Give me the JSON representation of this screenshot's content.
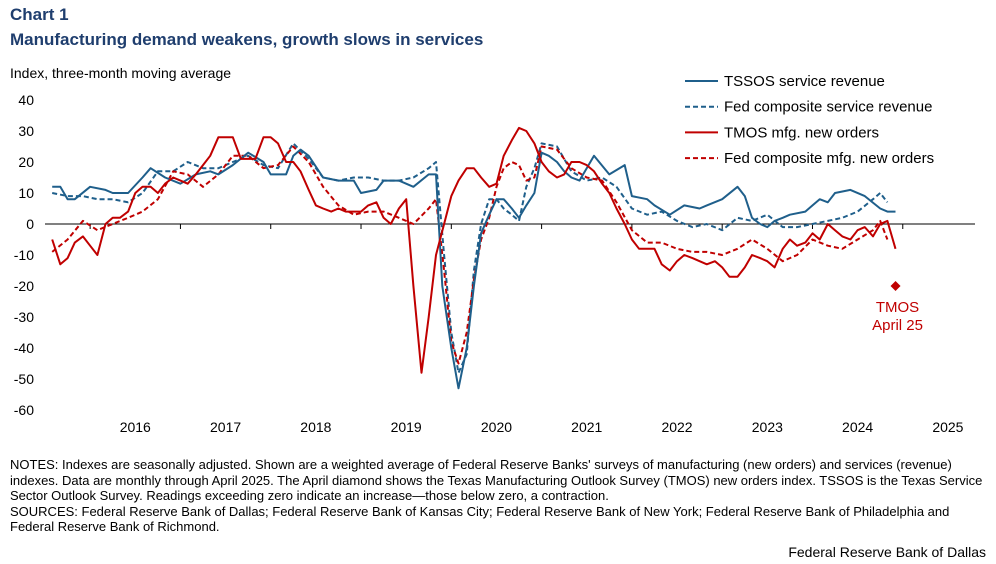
{
  "header": {
    "label": "Chart 1",
    "title": "Manufacturing demand weakens, growth slows in services"
  },
  "chart_data": {
    "type": "line",
    "ylabel": "Index, three-month moving average",
    "ylim": [
      -60,
      40
    ],
    "yticks": [
      40,
      30,
      20,
      10,
      0,
      -10,
      -20,
      -30,
      -40,
      -50,
      -60
    ],
    "xlim": [
      2015.5,
      2025.8
    ],
    "xticks": [
      "2016",
      "2017",
      "2018",
      "2019",
      "2020",
      "2021",
      "2022",
      "2023",
      "2024",
      "2025"
    ],
    "legend_position": "top-right",
    "series": [
      {
        "name": "TSSOS service revenue",
        "color": "#1f5f8b",
        "dash": "solid",
        "x": [
          2015.58,
          2015.67,
          2015.75,
          2015.83,
          2016.0,
          2016.17,
          2016.25,
          2016.42,
          2016.58,
          2016.67,
          2016.83,
          2017.0,
          2017.17,
          2017.33,
          2017.42,
          2017.58,
          2017.75,
          2017.92,
          2018.0,
          2018.17,
          2018.25,
          2018.33,
          2018.42,
          2018.58,
          2018.75,
          2018.92,
          2019.0,
          2019.17,
          2019.25,
          2019.42,
          2019.58,
          2019.75,
          2019.83,
          2019.9,
          2020.0,
          2020.08,
          2020.17,
          2020.25,
          2020.33,
          2020.42,
          2020.5,
          2020.58,
          2020.67,
          2020.75,
          2020.83,
          2020.92,
          2021.0,
          2021.08,
          2021.17,
          2021.25,
          2021.33,
          2021.42,
          2021.58,
          2021.75,
          2021.92,
          2022.0,
          2022.17,
          2022.25,
          2022.42,
          2022.58,
          2022.75,
          2022.83,
          2023.0,
          2023.17,
          2023.25,
          2023.33,
          2023.42,
          2023.5,
          2023.58,
          2023.67,
          2023.75,
          2023.92,
          2024.0,
          2024.08,
          2024.17,
          2024.25,
          2024.42,
          2024.58,
          2024.75,
          2024.83,
          2024.92
        ],
        "y": [
          12,
          12,
          8,
          8,
          12,
          11,
          10,
          10,
          15,
          18,
          15,
          13,
          16,
          17,
          16,
          19,
          23,
          20,
          16,
          16,
          22,
          24,
          22,
          15,
          14,
          14,
          10,
          11,
          14,
          14,
          12,
          16,
          16,
          -20,
          -40,
          -53,
          -40,
          -20,
          -3,
          3,
          8,
          8,
          5,
          2,
          6,
          10,
          23,
          22,
          20,
          17,
          15,
          14,
          22,
          16,
          19,
          9,
          8,
          6,
          3,
          6,
          5,
          6,
          8,
          12,
          9,
          2,
          0,
          -1,
          1,
          2,
          3,
          4,
          6,
          8,
          7,
          10,
          11,
          9,
          5,
          4,
          4
        ]
      },
      {
        "name": "Fed composite service revenue",
        "color": "#1f5f8b",
        "dash": "dashed",
        "x": [
          2015.58,
          2015.75,
          2015.92,
          2016.08,
          2016.25,
          2016.42,
          2016.58,
          2016.75,
          2016.92,
          2017.08,
          2017.25,
          2017.42,
          2017.58,
          2017.75,
          2017.92,
          2018.08,
          2018.25,
          2018.42,
          2018.58,
          2018.75,
          2018.92,
          2019.08,
          2019.25,
          2019.42,
          2019.58,
          2019.75,
          2019.83,
          2019.92,
          2020.0,
          2020.08,
          2020.17,
          2020.25,
          2020.33,
          2020.42,
          2020.5,
          2020.58,
          2020.67,
          2020.75,
          2020.83,
          2020.92,
          2021.0,
          2021.17,
          2021.33,
          2021.5,
          2021.67,
          2021.83,
          2022.0,
          2022.17,
          2022.33,
          2022.5,
          2022.67,
          2022.83,
          2023.0,
          2023.17,
          2023.33,
          2023.5,
          2023.67,
          2023.83,
          2024.0,
          2024.17,
          2024.33,
          2024.5,
          2024.67,
          2024.75,
          2024.83
        ],
        "y": [
          10,
          9,
          9,
          8,
          8,
          7,
          10,
          17,
          17,
          20,
          18,
          18,
          20,
          22,
          19,
          18,
          26,
          21,
          15,
          14,
          15,
          15,
          14,
          14,
          15,
          18,
          20,
          -10,
          -35,
          -48,
          -42,
          -15,
          0,
          8,
          8,
          5,
          3,
          1,
          12,
          18,
          26,
          25,
          17,
          14,
          15,
          12,
          5,
          3,
          4,
          1,
          -1,
          0,
          -2,
          2,
          1,
          3,
          -1,
          -1,
          0,
          1,
          2,
          4,
          8,
          10,
          7
        ]
      },
      {
        "name": "TMOS mfg. new orders",
        "color": "#c00000",
        "dash": "solid",
        "x": [
          2015.58,
          2015.67,
          2015.75,
          2015.83,
          2015.92,
          2016.0,
          2016.08,
          2016.17,
          2016.25,
          2016.33,
          2016.42,
          2016.5,
          2016.58,
          2016.67,
          2016.75,
          2016.83,
          2016.92,
          2017.0,
          2017.08,
          2017.17,
          2017.25,
          2017.33,
          2017.42,
          2017.5,
          2017.58,
          2017.67,
          2017.75,
          2017.83,
          2017.92,
          2018.0,
          2018.08,
          2018.17,
          2018.25,
          2018.33,
          2018.42,
          2018.5,
          2018.58,
          2018.67,
          2018.75,
          2018.83,
          2018.92,
          2019.0,
          2019.08,
          2019.17,
          2019.25,
          2019.33,
          2019.42,
          2019.5,
          2019.58,
          2019.67,
          2019.75,
          2019.83,
          2019.92,
          2020.0,
          2020.08,
          2020.17,
          2020.25,
          2020.33,
          2020.42,
          2020.5,
          2020.58,
          2020.67,
          2020.75,
          2020.83,
          2020.92,
          2021.0,
          2021.08,
          2021.17,
          2021.25,
          2021.33,
          2021.42,
          2021.5,
          2021.58,
          2021.67,
          2021.75,
          2021.83,
          2021.92,
          2022.0,
          2022.08,
          2022.17,
          2022.25,
          2022.33,
          2022.42,
          2022.5,
          2022.58,
          2022.67,
          2022.75,
          2022.83,
          2022.92,
          2023.0,
          2023.08,
          2023.17,
          2023.25,
          2023.33,
          2023.42,
          2023.5,
          2023.58,
          2023.67,
          2023.75,
          2023.83,
          2023.92,
          2024.0,
          2024.08,
          2024.17,
          2024.25,
          2024.33,
          2024.42,
          2024.5,
          2024.58,
          2024.67,
          2024.75,
          2024.83,
          2024.92
        ],
        "y": [
          -5,
          -13,
          -11,
          -6,
          -4,
          -7,
          -10,
          0,
          2,
          2,
          4,
          10,
          12,
          12,
          10,
          13,
          15,
          14,
          13,
          16,
          19,
          22,
          28,
          28,
          28,
          21,
          21,
          21,
          28,
          28,
          26,
          20,
          20,
          17,
          11,
          6,
          5,
          4,
          5,
          4,
          4,
          4,
          6,
          7,
          2,
          0,
          5,
          8,
          -20,
          -48,
          -30,
          -10,
          0,
          9,
          14,
          18,
          18,
          15,
          12,
          13,
          22,
          27,
          31,
          30,
          26,
          20,
          17,
          15,
          16,
          20,
          20,
          19,
          17,
          13,
          10,
          5,
          0,
          -5,
          -8,
          -8,
          -8,
          -13,
          -15,
          -12,
          -10,
          -11,
          -12,
          -13,
          -12,
          -14,
          -17,
          -17,
          -14,
          -10,
          -11,
          -12,
          -14,
          -8,
          -5,
          -7,
          -6,
          -3,
          -5,
          0,
          -2,
          -4,
          -5,
          -2,
          -1,
          -4,
          0,
          1,
          -8
        ]
      },
      {
        "name": "Fed composite mfg. new orders",
        "color": "#c00000",
        "dash": "dashed",
        "x": [
          2015.58,
          2015.75,
          2015.92,
          2016.08,
          2016.25,
          2016.42,
          2016.58,
          2016.75,
          2016.92,
          2017.08,
          2017.25,
          2017.42,
          2017.58,
          2017.75,
          2017.92,
          2018.08,
          2018.25,
          2018.42,
          2018.58,
          2018.75,
          2018.92,
          2019.08,
          2019.25,
          2019.42,
          2019.58,
          2019.75,
          2019.83,
          2019.92,
          2020.0,
          2020.08,
          2020.17,
          2020.25,
          2020.33,
          2020.42,
          2020.5,
          2020.58,
          2020.67,
          2020.75,
          2020.83,
          2020.92,
          2021.0,
          2021.17,
          2021.33,
          2021.5,
          2021.67,
          2021.83,
          2022.0,
          2022.17,
          2022.33,
          2022.5,
          2022.67,
          2022.83,
          2023.0,
          2023.17,
          2023.33,
          2023.5,
          2023.67,
          2023.83,
          2024.0,
          2024.17,
          2024.33,
          2024.5,
          2024.67,
          2024.75,
          2024.83
        ],
        "y": [
          -9,
          -5,
          1,
          -2,
          0,
          2,
          4,
          8,
          17,
          16,
          12,
          16,
          22,
          22,
          18,
          19,
          25,
          20,
          12,
          6,
          3,
          4,
          4,
          2,
          0,
          5,
          8,
          -15,
          -38,
          -45,
          -35,
          -18,
          -5,
          2,
          12,
          18,
          20,
          19,
          14,
          15,
          25,
          24,
          18,
          15,
          14,
          7,
          -2,
          -6,
          -6,
          -8,
          -9,
          -9,
          -10,
          -8,
          -5,
          -8,
          -12,
          -10,
          -5,
          -7,
          -8,
          -5,
          -2,
          1,
          -5
        ]
      }
    ],
    "annotations": [
      {
        "type": "point",
        "marker": "diamond",
        "color": "#c00000",
        "x": 2024.92,
        "y": -20,
        "label_lines": [
          "TMOS",
          "April 25"
        ]
      }
    ]
  },
  "footer": {
    "notes": "NOTES: Indexes are seasonally adjusted. Shown are a weighted average of Federal Reserve Banks' surveys of manufacturing (new orders) and services (revenue) indexes. Data are monthly through April 2025. The April diamond shows the Texas Manufacturing Outlook Survey (TMOS) new orders index. TSSOS is the Texas Service Sector Outlook Survey. Readings exceeding zero indicate an increase—those below zero, a contraction.",
    "sources": "SOURCES: Federal Reserve Bank of Dallas; Federal Reserve Bank of Kansas City; Federal Reserve Bank of New York; Federal Reserve Bank of Philadelphia and Federal Reserve Bank of Richmond.",
    "credit": "Federal Reserve Bank of Dallas"
  }
}
